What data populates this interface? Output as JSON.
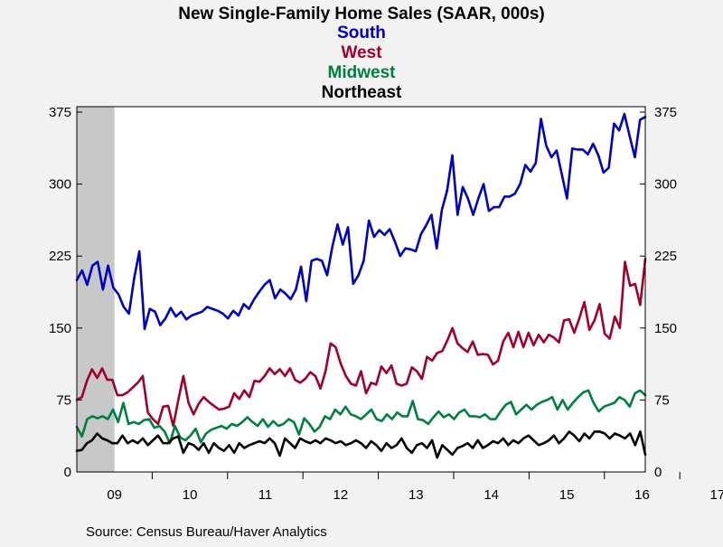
{
  "chart_data": {
    "type": "line",
    "title": "New Single-Family Home Sales (SAAR, 000s)",
    "source": "Source:  Census Bureau/Haver Analytics",
    "x_start": "2009-01",
    "x_labels": [
      "09",
      "10",
      "11",
      "12",
      "13",
      "14",
      "15",
      "16",
      "17"
    ],
    "y_ticks": [
      0,
      75,
      150,
      225,
      300,
      375
    ],
    "y_tick_labels": [
      "0",
      "75",
      "150",
      "225",
      "300",
      "375"
    ],
    "ylim": [
      0,
      375
    ],
    "recession_shade": {
      "start": "2009-01",
      "end": "2009-06",
      "color": "#c8c8c8"
    },
    "series": [
      {
        "name": "South",
        "color": "#0000c0",
        "values": [
          200,
          210,
          195,
          215,
          219,
          190,
          215,
          192,
          185,
          172,
          165,
          202,
          230,
          149,
          170,
          167,
          153,
          160,
          171,
          162,
          167,
          159,
          163,
          165,
          167,
          172,
          170,
          168,
          165,
          160,
          168,
          163,
          175,
          170,
          180,
          188,
          195,
          200,
          181,
          190,
          186,
          180,
          190,
          214,
          178,
          220,
          222,
          220,
          205,
          235,
          258,
          237,
          255,
          196,
          205,
          220,
          262,
          245,
          252,
          247,
          253,
          240,
          225,
          233,
          232,
          230,
          248,
          257,
          268,
          233,
          273,
          293,
          330,
          268,
          297,
          285,
          268,
          285,
          300,
          272,
          276,
          276,
          287,
          287,
          290,
          300,
          320,
          313,
          322,
          368,
          340,
          328,
          335,
          310,
          285,
          337,
          336,
          336,
          331,
          342,
          330,
          312,
          317,
          363,
          356,
          373,
          350,
          328,
          367,
          370
        ]
      },
      {
        "name": "West",
        "color": "#a0002a",
        "values": [
          75,
          78,
          95,
          107,
          98,
          108,
          96,
          96,
          80,
          80,
          83,
          88,
          93,
          100,
          62,
          55,
          50,
          68,
          69,
          48,
          75,
          100,
          72,
          60,
          71,
          78,
          73,
          69,
          65,
          66,
          68,
          82,
          76,
          85,
          78,
          95,
          94,
          100,
          108,
          102,
          107,
          100,
          108,
          96,
          93,
          97,
          104,
          100,
          87,
          105,
          134,
          130,
          113,
          100,
          92,
          90,
          105,
          82,
          93,
          91,
          110,
          103,
          111,
          92,
          90,
          92,
          109,
          105,
          97,
          120,
          116,
          124,
          126,
          137,
          150,
          134,
          129,
          125,
          136,
          122,
          123,
          122,
          112,
          116,
          136,
          145,
          130,
          146,
          130,
          145,
          132,
          143,
          135,
          143,
          140,
          135,
          158,
          159,
          145,
          160,
          177,
          148,
          158,
          175,
          144,
          139,
          162,
          150,
          219,
          194,
          196,
          174,
          222
        ]
      },
      {
        "name": "Midwest",
        "color": "#008040",
        "values": [
          47,
          37,
          55,
          58,
          56,
          58,
          55,
          65,
          52,
          72,
          50,
          52,
          50,
          54,
          55,
          46,
          48,
          42,
          30,
          48,
          36,
          33,
          38,
          45,
          31,
          40,
          44,
          46,
          48,
          45,
          50,
          48,
          52,
          57,
          52,
          48,
          55,
          47,
          53,
          48,
          50,
          55,
          52,
          39,
          56,
          50,
          42,
          47,
          58,
          55,
          65,
          60,
          68,
          60,
          58,
          55,
          60,
          65,
          55,
          53,
          60,
          55,
          62,
          58,
          58,
          74,
          55,
          54,
          50,
          57,
          63,
          57,
          60,
          55,
          62,
          65,
          58,
          58,
          57,
          60,
          55,
          55,
          63,
          70,
          73,
          60,
          65,
          70,
          65,
          70,
          73,
          75,
          78,
          65,
          75,
          65,
          72,
          78,
          83,
          85,
          72,
          63,
          68,
          70,
          72,
          78,
          75,
          68,
          82,
          85,
          80
        ]
      },
      {
        "name": "Northeast",
        "color": "#000000",
        "values": [
          22,
          23,
          30,
          33,
          40,
          35,
          33,
          30,
          30,
          38,
          30,
          33,
          30,
          35,
          28,
          33,
          38,
          30,
          30,
          35,
          37,
          20,
          30,
          28,
          23,
          30,
          20,
          30,
          25,
          22,
          28,
          20,
          30,
          25,
          28,
          30,
          32,
          30,
          35,
          30,
          17,
          35,
          30,
          25,
          35,
          32,
          30,
          33,
          30,
          35,
          33,
          30,
          32,
          28,
          30,
          33,
          30,
          25,
          32,
          28,
          22,
          30,
          25,
          28,
          35,
          25,
          20,
          28,
          30,
          25,
          33,
          15,
          28,
          23,
          18,
          25,
          27,
          30,
          25,
          33,
          25,
          28,
          32,
          30,
          35,
          28,
          33,
          30,
          35,
          38,
          33,
          28,
          30,
          33,
          38,
          30,
          35,
          42,
          38,
          32,
          40,
          35,
          42,
          42,
          40,
          35,
          40,
          38,
          35,
          40,
          28,
          42,
          18
        ]
      }
    ]
  }
}
